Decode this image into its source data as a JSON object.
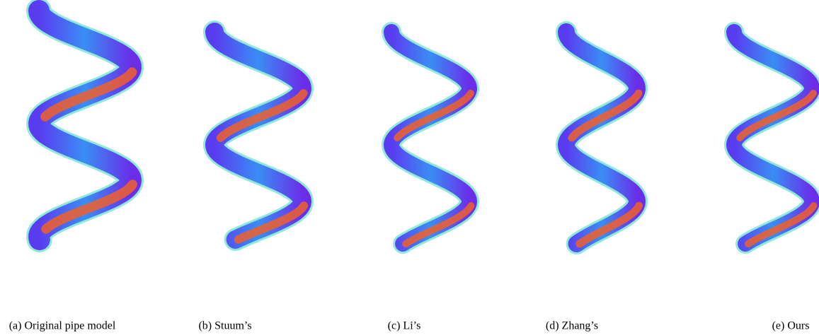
{
  "panels": [
    {
      "caption": "(a) Original pipe model"
    },
    {
      "caption": "(b) Stuum’s"
    },
    {
      "caption": "(c) Li’s"
    },
    {
      "caption": "(d) Zhang’s"
    },
    {
      "caption": "(e) Ours"
    }
  ]
}
